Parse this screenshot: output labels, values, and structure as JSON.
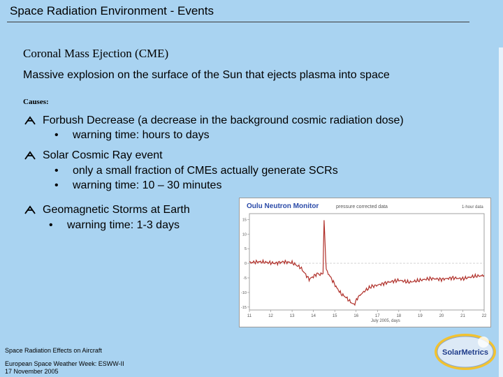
{
  "slide": {
    "title": "Space Radiation Environment - Events",
    "cme_heading": "Coronal Mass Ejection (CME)",
    "cme_description": "Massive explosion on the surface of the Sun that ejects plasma into space",
    "causes_label": "Causes:",
    "items": [
      {
        "label": "Forbush Decrease (a decrease in the background cosmic radiation dose)",
        "subs": [
          "warning time: hours to days"
        ]
      },
      {
        "label": "Solar Cosmic Ray event",
        "subs": [
          "only a small fraction of CMEs actually generate SCRs",
          "warning time: 10 – 30 minutes"
        ]
      },
      {
        "label": "Geomagnetic Storms at Earth",
        "subs": [
          "warning time: 1-3 days"
        ]
      }
    ],
    "bullet_char": "•",
    "footer": {
      "line1": "Space Radiation Effects on Aircraft",
      "line2": "European Space Weather Week: ESWW-II",
      "line3": "17 November 2005"
    },
    "logo_text": "SolarMetrics"
  },
  "chart_data": {
    "type": "line",
    "title": "Oulu Neutron Monitor",
    "subtitle": "pressure corrected data",
    "resolution_label": "1-hour data",
    "xlabel": "July 2005, days",
    "x_ticks": [
      "11",
      "12",
      "13",
      "14",
      "15",
      "16",
      "17",
      "18",
      "19",
      "20",
      "21",
      "22"
    ],
    "y_ticks": [
      "5",
      "0",
      "-5",
      "-10",
      "-15"
    ],
    "y_tick_values": [
      5,
      0,
      -5,
      -10,
      -15
    ],
    "y_top_ticks": [
      "15",
      "10"
    ],
    "ylim": [
      -16,
      17
    ],
    "xlim": [
      11,
      22
    ],
    "series": [
      {
        "x": [
          11,
          11.4,
          11.8,
          12.2,
          12.6,
          13.0,
          13.4,
          13.8,
          14.0,
          14.2,
          14.35,
          14.45,
          14.5,
          14.55,
          14.6,
          14.7,
          14.9,
          15.1,
          15.3,
          15.5,
          15.7,
          15.9,
          16.1,
          16.4,
          16.7,
          17.0,
          17.5,
          18.0,
          18.5,
          19.0,
          19.5,
          20.0,
          20.5,
          21.0,
          21.5,
          22.0
        ],
        "y": [
          0.2,
          0.5,
          0.3,
          0.0,
          0.5,
          0.2,
          -1.5,
          -5.5,
          -4.5,
          -3.5,
          -4.0,
          -3.0,
          14.5,
          6.0,
          -2.0,
          -3.5,
          -6.0,
          -8.5,
          -10.5,
          -11.5,
          -13.0,
          -14.2,
          -11.5,
          -9.5,
          -8.0,
          -7.5,
          -6.5,
          -5.8,
          -6.5,
          -5.8,
          -5.2,
          -5.5,
          -5.0,
          -5.3,
          -4.5,
          -4.2
        ]
      }
    ],
    "colors": {
      "line": "#b0302a",
      "axis": "#8a8a8a",
      "title": "#2a4aa8"
    }
  }
}
